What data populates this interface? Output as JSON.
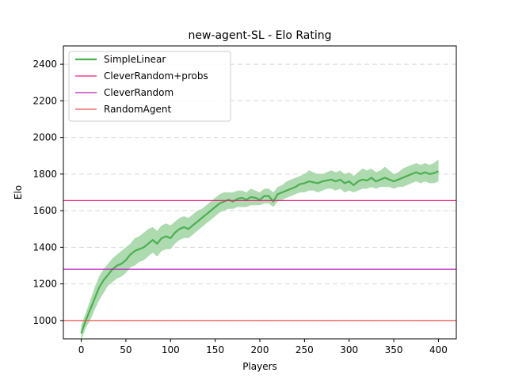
{
  "chart_data": {
    "type": "line",
    "title": "new-agent-SL - Elo Rating",
    "xlabel": "Players",
    "ylabel": "Elo",
    "xlim": [
      -20,
      420
    ],
    "ylim": [
      900,
      2500
    ],
    "xticks": [
      "0",
      "50",
      "100",
      "150",
      "200",
      "250",
      "300",
      "350",
      "400"
    ],
    "yticks": [
      "1000",
      "1200",
      "1400",
      "1600",
      "1800",
      "2000",
      "2200",
      "2400"
    ],
    "grid": "y-dashed",
    "legend_position": "top-left",
    "series": [
      {
        "name": "SimpleLinear",
        "style": "line-with-band",
        "color": "#4caf50",
        "band_color": "#a5d6a7",
        "x": [
          0,
          5,
          10,
          15,
          20,
          25,
          30,
          35,
          40,
          45,
          50,
          55,
          60,
          65,
          70,
          75,
          80,
          85,
          90,
          95,
          100,
          105,
          110,
          115,
          120,
          125,
          130,
          135,
          140,
          145,
          150,
          155,
          160,
          165,
          170,
          175,
          180,
          185,
          190,
          195,
          200,
          205,
          210,
          215,
          220,
          225,
          230,
          235,
          240,
          245,
          250,
          255,
          260,
          265,
          270,
          275,
          280,
          285,
          290,
          295,
          300,
          305,
          310,
          315,
          320,
          325,
          330,
          335,
          340,
          345,
          350,
          355,
          360,
          365,
          370,
          375,
          380,
          385,
          390,
          395,
          400
        ],
        "y": [
          930,
          1000,
          1060,
          1120,
          1180,
          1220,
          1250,
          1280,
          1300,
          1310,
          1330,
          1360,
          1380,
          1390,
          1400,
          1420,
          1440,
          1420,
          1450,
          1460,
          1450,
          1480,
          1500,
          1510,
          1500,
          1520,
          1540,
          1560,
          1580,
          1600,
          1620,
          1640,
          1650,
          1660,
          1650,
          1665,
          1670,
          1660,
          1675,
          1670,
          1660,
          1680,
          1680,
          1650,
          1690,
          1700,
          1710,
          1720,
          1730,
          1745,
          1750,
          1760,
          1755,
          1750,
          1760,
          1765,
          1770,
          1760,
          1770,
          1750,
          1760,
          1740,
          1760,
          1770,
          1765,
          1780,
          1760,
          1770,
          1780,
          1770,
          1760,
          1770,
          1780,
          1790,
          1800,
          1810,
          1800,
          1810,
          1800,
          1805,
          1815
        ],
        "lower": [
          890,
          960,
          1000,
          1060,
          1110,
          1150,
          1190,
          1210,
          1230,
          1240,
          1260,
          1290,
          1300,
          1320,
          1330,
          1350,
          1370,
          1350,
          1380,
          1390,
          1390,
          1420,
          1440,
          1450,
          1450,
          1470,
          1490,
          1510,
          1530,
          1550,
          1570,
          1590,
          1600,
          1610,
          1610,
          1620,
          1620,
          1620,
          1630,
          1630,
          1630,
          1640,
          1640,
          1620,
          1650,
          1660,
          1670,
          1680,
          1690,
          1700,
          1700,
          1710,
          1710,
          1700,
          1710,
          1720,
          1720,
          1710,
          1720,
          1700,
          1710,
          1700,
          1710,
          1720,
          1720,
          1730,
          1720,
          1730,
          1730,
          1730,
          1720,
          1730,
          1730,
          1740,
          1750,
          1760,
          1750,
          1760,
          1750,
          1750,
          1760
        ],
        "upper": [
          970,
          1040,
          1110,
          1180,
          1240,
          1280,
          1310,
          1340,
          1360,
          1380,
          1400,
          1420,
          1450,
          1460,
          1480,
          1500,
          1510,
          1490,
          1520,
          1530,
          1520,
          1540,
          1560,
          1570,
          1560,
          1580,
          1600,
          1610,
          1630,
          1650,
          1670,
          1690,
          1700,
          1700,
          1700,
          1710,
          1710,
          1700,
          1720,
          1710,
          1700,
          1720,
          1720,
          1700,
          1730,
          1740,
          1760,
          1770,
          1780,
          1790,
          1800,
          1820,
          1810,
          1800,
          1800,
          1810,
          1820,
          1810,
          1820,
          1800,
          1810,
          1790,
          1810,
          1830,
          1820,
          1830,
          1810,
          1820,
          1840,
          1820,
          1800,
          1810,
          1830,
          1840,
          1850,
          1860,
          1850,
          1860,
          1850,
          1860,
          1880
        ]
      },
      {
        "name": "CleverRandom+probs",
        "style": "hline",
        "color": "#e91e7f",
        "y": 1655
      },
      {
        "name": "CleverRandom",
        "style": "hline",
        "color": "#b81db8",
        "y": 1280
      },
      {
        "name": "RandomAgent",
        "style": "hline",
        "color": "#f0524a",
        "y": 1000
      }
    ]
  }
}
